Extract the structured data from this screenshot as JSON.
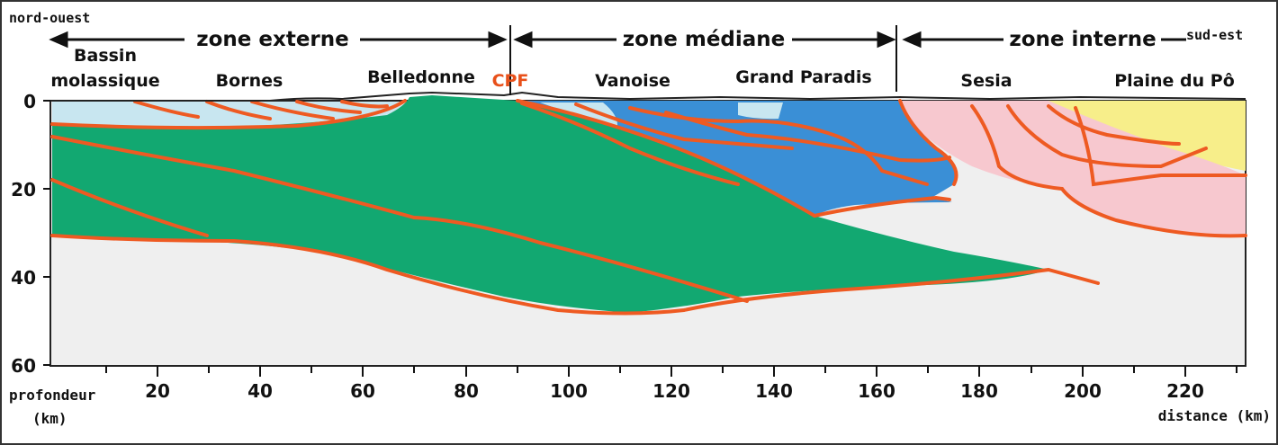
{
  "corners": {
    "left": "nord-ouest",
    "right": "sud-est"
  },
  "zones": [
    {
      "label": "zone externe"
    },
    {
      "label": "zone médiane"
    },
    {
      "label": "zone interne"
    }
  ],
  "regions": [
    {
      "label": "Bassin"
    },
    {
      "label": "molassique"
    },
    {
      "label": "Bornes"
    },
    {
      "label": "Belledonne"
    },
    {
      "label": "CPF",
      "color": "#e8501a"
    },
    {
      "label": "Vanoise"
    },
    {
      "label": "Grand Paradis"
    },
    {
      "label": "Sesia"
    },
    {
      "label": "Plaine du Pô"
    }
  ],
  "y_axis": {
    "title": "profondeur",
    "unit": "(km)",
    "ticks": [
      "0",
      "20",
      "40",
      "60"
    ]
  },
  "x_axis": {
    "title": "distance (km)",
    "ticks": [
      "20",
      "40",
      "60",
      "80",
      "100",
      "120",
      "140",
      "160",
      "180",
      "200",
      "220"
    ]
  },
  "colors": {
    "green": "#12a871",
    "blue": "#3a8fd6",
    "lightblue": "#c8e6f0",
    "pink": "#f7c8cf",
    "yellow": "#f7ee8a",
    "grey": "#efefef",
    "fault": "#ee5a22"
  }
}
